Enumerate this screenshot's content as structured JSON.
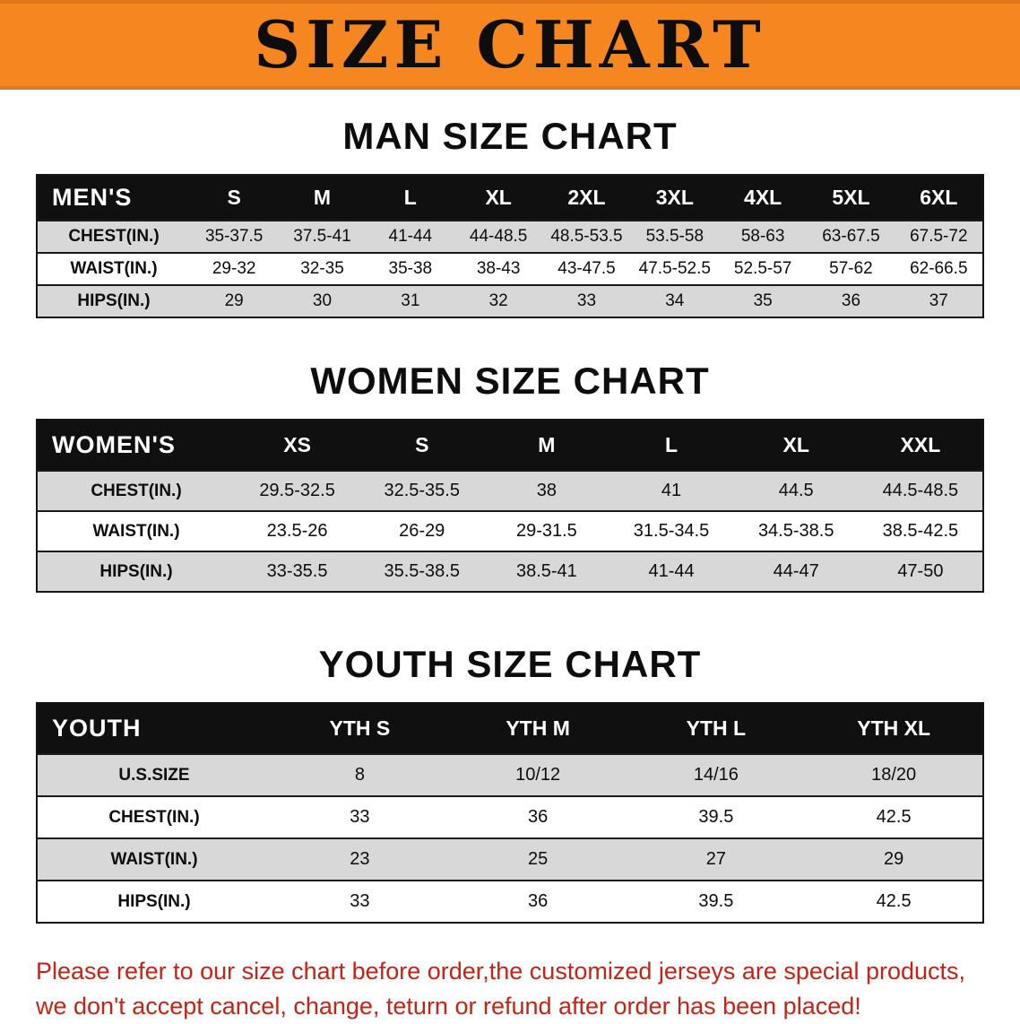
{
  "banner": {
    "title": "SIZE CHART"
  },
  "colors": {
    "banner_bg": "#f6861f",
    "table_header_bg": "#101010",
    "row_alt_bg": "#d8d8d8",
    "footer_text": "#c52315"
  },
  "sections": {
    "men": {
      "heading": "MAN SIZE CHART",
      "table": {
        "corner": "MEN'S",
        "columns": [
          "S",
          "M",
          "L",
          "XL",
          "2XL",
          "3XL",
          "4XL",
          "5XL",
          "6XL"
        ],
        "rows": [
          {
            "label": "CHEST(IN.)",
            "values": [
              "35-37.5",
              "37.5-41",
              "41-44",
              "44-48.5",
              "48.5-53.5",
              "53.5-58",
              "58-63",
              "63-67.5",
              "67.5-72"
            ]
          },
          {
            "label": "WAIST(IN.)",
            "values": [
              "29-32",
              "32-35",
              "35-38",
              "38-43",
              "43-47.5",
              "47.5-52.5",
              "52.5-57",
              "57-62",
              "62-66.5"
            ]
          },
          {
            "label": "HIPS(IN.)",
            "values": [
              "29",
              "30",
              "31",
              "32",
              "33",
              "34",
              "35",
              "36",
              "37"
            ]
          }
        ]
      }
    },
    "women": {
      "heading": "WOMEN SIZE CHART",
      "table": {
        "corner": "WOMEN'S",
        "columns": [
          "XS",
          "S",
          "M",
          "L",
          "XL",
          "XXL"
        ],
        "rows": [
          {
            "label": "CHEST(IN.)",
            "values": [
              "29.5-32.5",
              "32.5-35.5",
              "38",
              "41",
              "44.5",
              "44.5-48.5"
            ]
          },
          {
            "label": "WAIST(IN.)",
            "values": [
              "23.5-26",
              "26-29",
              "29-31.5",
              "31.5-34.5",
              "34.5-38.5",
              "38.5-42.5"
            ]
          },
          {
            "label": "HIPS(IN.)",
            "values": [
              "33-35.5",
              "35.5-38.5",
              "38.5-41",
              "41-44",
              "44-47",
              "47-50"
            ]
          }
        ]
      }
    },
    "youth": {
      "heading": "YOUTH SIZE CHART",
      "table": {
        "corner": "YOUTH",
        "columns": [
          "YTH S",
          "YTH M",
          "YTH L",
          "YTH XL"
        ],
        "rows": [
          {
            "label": "U.S.SIZE",
            "values": [
              "8",
              "10/12",
              "14/16",
              "18/20"
            ]
          },
          {
            "label": "CHEST(IN.)",
            "values": [
              "33",
              "36",
              "39.5",
              "42.5"
            ]
          },
          {
            "label": "WAIST(IN.)",
            "values": [
              "23",
              "25",
              "27",
              "29"
            ]
          },
          {
            "label": "HIPS(IN.)",
            "values": [
              "33",
              "36",
              "39.5",
              "42.5"
            ]
          }
        ]
      }
    }
  },
  "footer": {
    "lines": [
      "Please refer to our size chart before order,the customized jerseys are special products,",
      "we don't accept cancel, change, teturn or refund after order has been placed!"
    ]
  }
}
